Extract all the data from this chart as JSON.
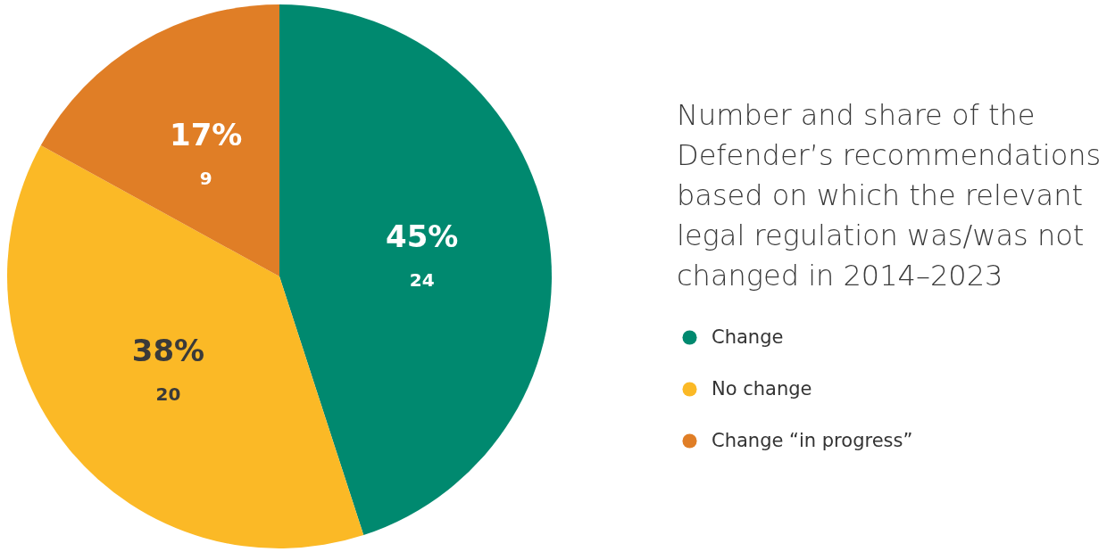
{
  "chart_data": {
    "type": "pie",
    "title": "Number and share of the Defender’s recommendations based on which the relevant legal regulation was/was not changed in 2014–2023",
    "categories": [
      "Change",
      "No change",
      "Change “in progress”"
    ],
    "values": [
      45,
      38,
      17
    ],
    "colors": [
      "#00896f",
      "#fbb926",
      "#e07e26"
    ],
    "value_labels": [
      "45%",
      "38%",
      "17%"
    ],
    "annotations": [
      {
        "text": "24",
        "x": "Change"
      },
      {
        "text": "20",
        "x": "No change"
      },
      {
        "text": "9",
        "x": "Change “in progress”"
      }
    ],
    "legend": "right"
  }
}
